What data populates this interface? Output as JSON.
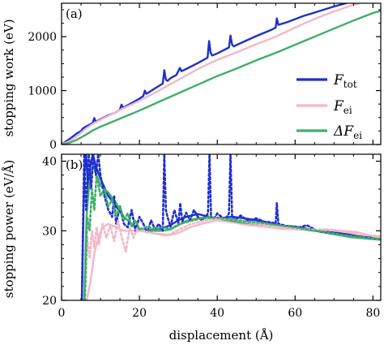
{
  "colors": {
    "F_tot": "#1f2fcc",
    "F_ei": "#f2b8c6",
    "dF_ei": "#3fae6a",
    "axis": "#000000"
  },
  "chart_data": [
    {
      "type": "line",
      "panel_label": "(a)",
      "ylabel": "stopping work (eV)",
      "xlim": [
        0,
        82
      ],
      "ylim": [
        0,
        2620
      ],
      "xticks": [
        0,
        20,
        40,
        60,
        80
      ],
      "yticks": [
        0,
        1000,
        2000
      ],
      "ytick_labels": [
        "0",
        "1000",
        "2000"
      ],
      "legend": {
        "placement": "center-right",
        "entries": [
          {
            "label_main": "F",
            "label_sub": "tot",
            "series": "F_tot"
          },
          {
            "label_main": "F",
            "label_sub": "ei",
            "series": "F_ei"
          },
          {
            "label_main": "ΔF",
            "label_sub": "ei",
            "series": "dF_ei"
          }
        ]
      },
      "series": [
        {
          "key": "F_tot",
          "style": "solid",
          "x": [
            0,
            2,
            4,
            5,
            5.5,
            6,
            8,
            8.4,
            8.8,
            10,
            12,
            14,
            15,
            15.4,
            15.8,
            18,
            20,
            21,
            21.4,
            21.8,
            24,
            26,
            26.4,
            26.8,
            27.2,
            28,
            29.5,
            30,
            30.4,
            30.8,
            32,
            35,
            37.5,
            37.9,
            38.3,
            38.7,
            40,
            43,
            43.4,
            43.8,
            44.2,
            46,
            50,
            54,
            55,
            55.3,
            55.7,
            58,
            62,
            66,
            70,
            74,
            78,
            81,
            82
          ],
          "y": [
            0,
            100,
            210,
            250,
            300,
            320,
            400,
            490,
            420,
            470,
            540,
            600,
            650,
            740,
            680,
            770,
            850,
            900,
            1000,
            940,
            1040,
            1130,
            1380,
            1200,
            1180,
            1230,
            1290,
            1360,
            1420,
            1360,
            1400,
            1510,
            1610,
            1920,
            1700,
            1650,
            1690,
            1800,
            2020,
            1850,
            1820,
            1880,
            2010,
            2130,
            2170,
            2340,
            2220,
            2270,
            2380,
            2470,
            2560,
            2640,
            2740,
            2810,
            2800
          ]
        },
        {
          "key": "F_ei",
          "style": "solid",
          "x": [
            0,
            2,
            4,
            6,
            8,
            10,
            12,
            15,
            20,
            25,
            30,
            35,
            40,
            45,
            50,
            55,
            60,
            65,
            70,
            75,
            80,
            82
          ],
          "y": [
            0,
            60,
            160,
            280,
            380,
            460,
            530,
            640,
            810,
            1000,
            1200,
            1400,
            1570,
            1710,
            1860,
            2000,
            2170,
            2330,
            2470,
            2590,
            2690,
            2720
          ]
        },
        {
          "key": "dF_ei",
          "style": "solid",
          "x": [
            0,
            2,
            4,
            6,
            8,
            10,
            12,
            15,
            20,
            25,
            30,
            35,
            40,
            45,
            50,
            55,
            60,
            65,
            70,
            75,
            80,
            82
          ],
          "y": [
            0,
            30,
            90,
            170,
            260,
            330,
            390,
            480,
            630,
            790,
            950,
            1110,
            1270,
            1410,
            1560,
            1700,
            1850,
            2000,
            2150,
            2300,
            2440,
            2480
          ]
        }
      ]
    },
    {
      "type": "line",
      "panel_label": "(b)",
      "ylabel": "stopping power (eV/Å)",
      "xlabel": "displacement (Å)",
      "xlim": [
        0,
        82
      ],
      "ylim": [
        20,
        41
      ],
      "xticks": [
        0,
        20,
        40,
        60,
        80
      ],
      "xtick_labels": [
        "0",
        "20",
        "40",
        "60",
        "80"
      ],
      "yticks": [
        20,
        30,
        40
      ],
      "ytick_labels": [
        "20",
        "30",
        "40"
      ],
      "series": [
        {
          "key": "F_tot",
          "style": "solid",
          "x": [
            5.2,
            5.8,
            6.3,
            6.8,
            7.3,
            8,
            9,
            10,
            12,
            14,
            16,
            18,
            20,
            22,
            24,
            26,
            28,
            30,
            32,
            35,
            38,
            40,
            44,
            48,
            52,
            56,
            60,
            64,
            68,
            72,
            76,
            80,
            82
          ],
          "y": [
            20,
            38,
            41,
            36,
            39,
            41,
            39,
            37.5,
            35,
            33.5,
            32,
            31,
            30.2,
            30,
            30.2,
            30.4,
            30.8,
            31.5,
            32,
            32.4,
            32,
            31.8,
            32,
            31.7,
            31.3,
            30.8,
            30.6,
            30.2,
            29.9,
            29.6,
            29.2,
            29.0,
            28.9
          ]
        },
        {
          "key": "F_ei",
          "style": "solid",
          "x": [
            5.5,
            6.5,
            7.5,
            8.5,
            9.5,
            10.5,
            12,
            14,
            16,
            18,
            20,
            22,
            24,
            26,
            28,
            30,
            33,
            36,
            40,
            44,
            48,
            52,
            56,
            60,
            64,
            68,
            72,
            76,
            80,
            82
          ],
          "y": [
            20,
            20,
            23,
            27,
            29,
            30.5,
            31,
            30.5,
            30,
            30,
            30,
            29.8,
            29.6,
            29.5,
            29.4,
            29.7,
            30.5,
            31.0,
            31.5,
            31.2,
            30.8,
            30.6,
            30.3,
            30.2,
            30.1,
            30.2,
            30.0,
            29.8,
            29.2,
            29.0
          ]
        },
        {
          "key": "dF_ei",
          "style": "solid",
          "x": [
            5.8,
            6.4,
            7,
            7.6,
            8.2,
            9,
            10,
            12,
            14,
            16,
            18,
            20,
            22,
            24,
            26,
            28,
            30,
            32,
            35,
            38,
            42,
            46,
            50,
            54,
            58,
            62,
            66,
            70,
            74,
            78,
            82
          ],
          "y": [
            20,
            32,
            36,
            38.5,
            39.3,
            38,
            36.5,
            35.5,
            34,
            32,
            31,
            30.3,
            30,
            30,
            30,
            30.2,
            30.8,
            31.4,
            31.8,
            32.0,
            31.6,
            31.2,
            31.0,
            30.8,
            30.6,
            30.2,
            29.9,
            29.5,
            29.1,
            28.9,
            28.7
          ]
        },
        {
          "key": "F_tot",
          "style": "dotted",
          "x": [
            5.2,
            5.8,
            6.3,
            7,
            7.6,
            8.2,
            8.8,
            9.4,
            10,
            11,
            12,
            13,
            13.5,
            14,
            15,
            16,
            17,
            18,
            19,
            20,
            21,
            22,
            23,
            24,
            25,
            26,
            26.4,
            26.8,
            27.2,
            28,
            29,
            30,
            30.5,
            31,
            32,
            33,
            34,
            35,
            36,
            37,
            37.6,
            38,
            38.4,
            39,
            40,
            42,
            43,
            43.4,
            43.8,
            44.5,
            46,
            48,
            50,
            52,
            54,
            55,
            55.3,
            55.7,
            57,
            60,
            63,
            66,
            70,
            74,
            78,
            82
          ],
          "y": [
            20,
            41,
            33,
            41,
            36,
            41,
            38,
            41,
            38,
            35,
            33,
            32,
            35,
            31,
            33.5,
            31,
            30.5,
            33,
            30,
            32,
            31,
            29.8,
            31.5,
            30.2,
            31,
            30,
            41,
            33,
            32,
            30.6,
            33,
            31,
            34,
            31.3,
            32.6,
            31.5,
            33,
            32,
            31.5,
            32,
            32.5,
            41,
            32,
            31.6,
            32.5,
            31.6,
            32.5,
            41,
            32,
            31.5,
            32.2,
            31.4,
            31.8,
            31.3,
            31.2,
            31,
            34,
            31,
            30.8,
            30.3,
            30.8,
            29.9,
            29.6,
            29.5,
            29,
            28.8
          ]
        },
        {
          "key": "F_ei",
          "style": "dotted",
          "x": [
            6,
            6.6,
            7.2,
            7.8,
            8.4,
            9,
            9.6,
            10.5,
            11.5,
            12.5,
            13.5,
            14.5,
            15.5,
            16.5,
            17.5,
            18.5,
            19.5,
            21,
            23,
            25,
            27,
            29,
            31,
            33,
            35,
            37,
            40,
            44,
            48,
            52,
            56,
            60,
            64,
            68,
            72,
            76,
            80,
            82
          ],
          "y": [
            20,
            29,
            26,
            30,
            27.5,
            30.5,
            28,
            31,
            29,
            30.8,
            28.5,
            31.5,
            29,
            27,
            30.5,
            29,
            30.5,
            30,
            29.7,
            29.5,
            29.3,
            29.8,
            30.4,
            30.9,
            31.2,
            31.5,
            31.8,
            31.6,
            31.2,
            30.9,
            30.5,
            30.3,
            30.2,
            30.1,
            29.9,
            29.5,
            29.3,
            29.2
          ]
        },
        {
          "key": "dF_ei",
          "style": "dotted",
          "x": [
            6,
            6.6,
            7.2,
            7.8,
            8.4,
            9,
            10,
            11,
            12,
            13,
            14,
            15,
            16,
            17,
            18,
            19,
            20,
            22,
            24,
            26,
            28,
            30,
            33,
            36,
            40,
            44,
            48,
            52,
            56,
            60,
            64,
            68,
            72,
            76,
            80,
            82
          ],
          "y": [
            20,
            32,
            30,
            36,
            33,
            38,
            35,
            36,
            33.5,
            34.5,
            32,
            33.5,
            31.5,
            32.5,
            30.5,
            31.5,
            30.2,
            30.6,
            30.2,
            30.5,
            30.3,
            30.9,
            31.4,
            31.8,
            31.9,
            31.6,
            31.3,
            31.1,
            30.8,
            30.5,
            30.1,
            29.8,
            29.4,
            29.1,
            28.9,
            28.8
          ]
        }
      ]
    }
  ]
}
